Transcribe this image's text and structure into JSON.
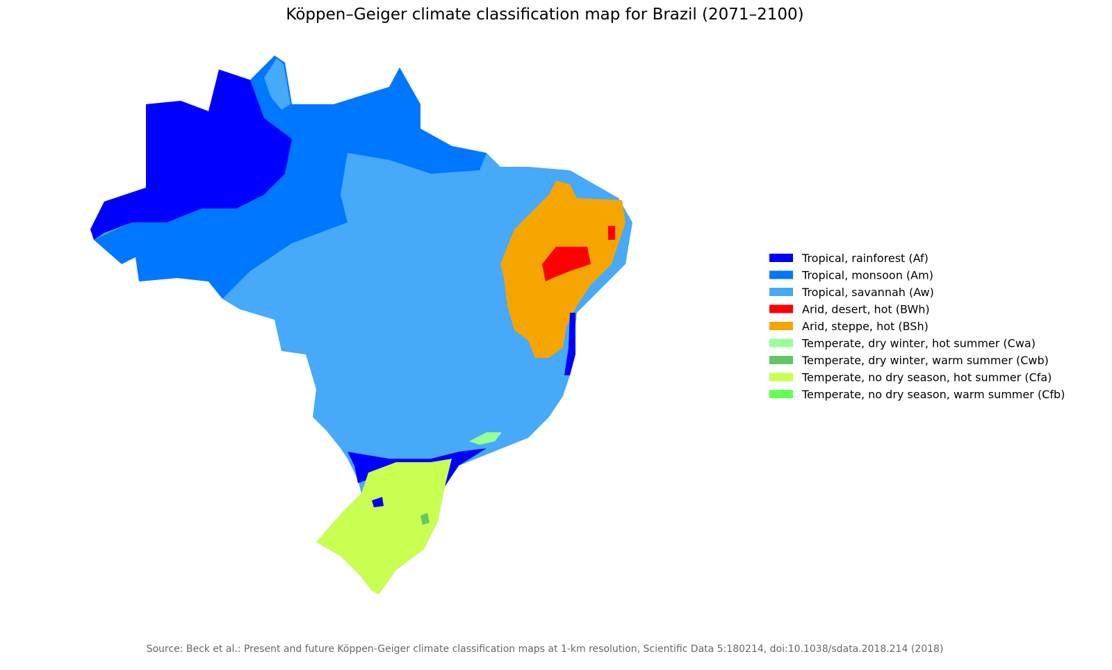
{
  "title": "Köppen–Geiger climate classification map for Brazil (2071–2100)",
  "legend": [
    {
      "label": "Tropical, rainforest (Af)",
      "color": "#0000fe"
    },
    {
      "label": "Tropical, monsoon (Am)",
      "color": "#0077ff"
    },
    {
      "label": "Tropical, savannah (Aw)",
      "color": "#46a9fa"
    },
    {
      "label": "Arid, desert, hot (BWh)",
      "color": "#fe0000"
    },
    {
      "label": "Arid, steppe, hot (BSh)",
      "color": "#f5a500"
    },
    {
      "label": "Temperate, dry winter, hot summer (Cwa)",
      "color": "#96ff96"
    },
    {
      "label": "Temperate, dry winter, warm summer (Cwb)",
      "color": "#63c764"
    },
    {
      "label": "Temperate, no dry season, hot summer (Cfa)",
      "color": "#c8ff50"
    },
    {
      "label": "Temperate, no dry season, warm summer (Cfb)",
      "color": "#64ff50"
    }
  ],
  "source": "Source: Beck et al.: Present and future Köppen-Geiger climate classification maps at 1-km resolution, Scientific Data 5:180214, doi:10.1038/sdata.2018.214 (2018)"
}
